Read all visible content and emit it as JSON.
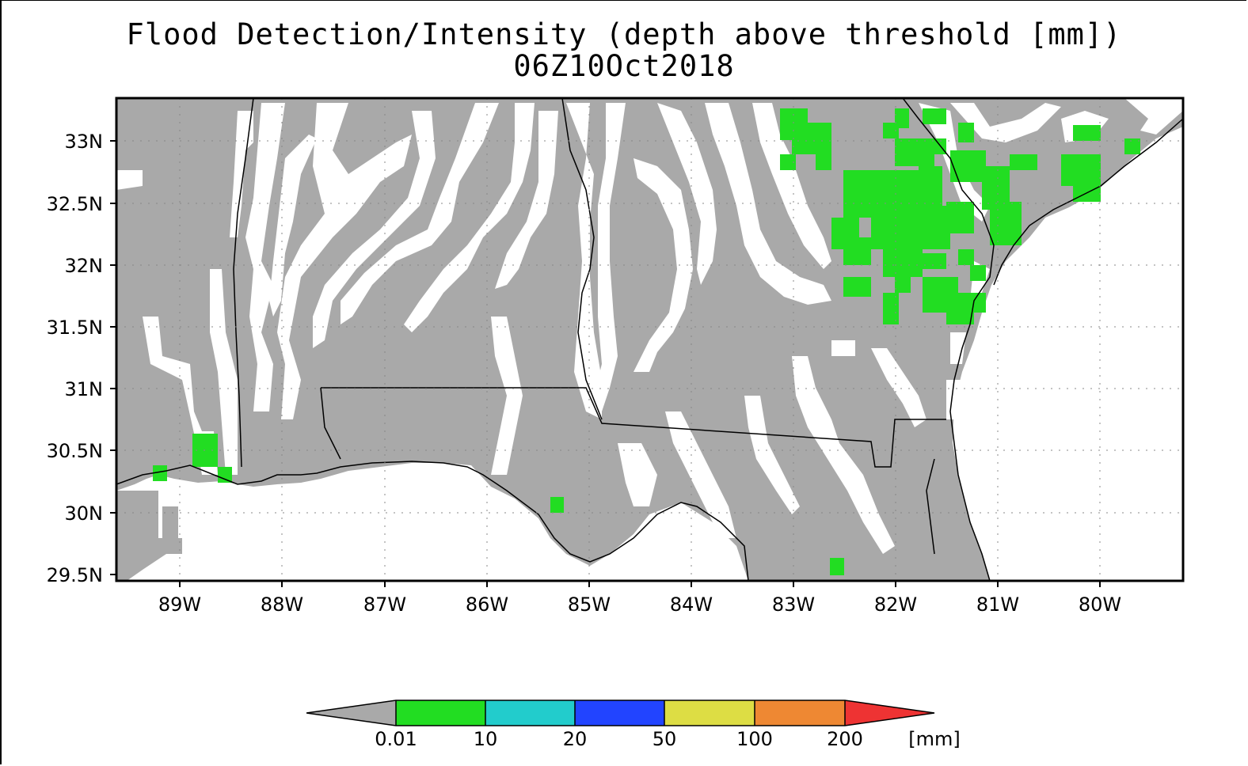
{
  "title": "Flood Detection/Intensity (depth above threshold [mm])",
  "subtitle": "06Z10Oct2018",
  "map": {
    "lon_range": [
      -89.6,
      -79.2
    ],
    "lat_range": [
      29.45,
      33.35
    ],
    "lat_ticks": [
      "33N",
      "32.5N",
      "32N",
      "31.5N",
      "31N",
      "30.5N",
      "30N",
      "29.5N"
    ],
    "lon_ticks": [
      "89W",
      "88W",
      "87W",
      "86W",
      "85W",
      "84W",
      "83W",
      "82W",
      "81W",
      "80W"
    ],
    "colors": {
      "no_flood_land": "#a9a9a9",
      "flood_low": "#22dd22",
      "water": "#ffffff"
    }
  },
  "legend": {
    "labels": [
      "0.01",
      "10",
      "20",
      "50",
      "100",
      "200"
    ],
    "unit": "[mm]",
    "colors": [
      "#a9a9a9",
      "#22dd22",
      "#22cccc",
      "#2244ff",
      "#dddd44",
      "#ee8833",
      "#ee3333"
    ]
  }
}
